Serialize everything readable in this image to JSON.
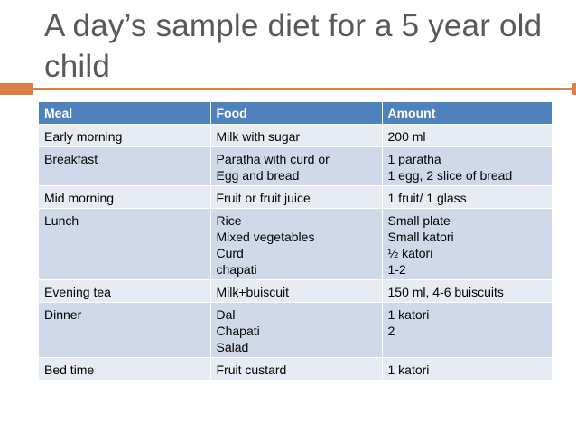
{
  "slide": {
    "title": "A day’s sample diet for a 5 year old child"
  },
  "table": {
    "headers": [
      "Meal",
      "Food",
      "Amount"
    ],
    "rows": [
      {
        "meal": "Early morning",
        "food": [
          "Milk with sugar"
        ],
        "amount": [
          "200 ml"
        ]
      },
      {
        "meal": "Breakfast",
        "food": [
          "Paratha with curd or",
          "Egg and bread"
        ],
        "amount": [
          "1 paratha",
          "1 egg, 2 slice of bread"
        ]
      },
      {
        "meal": "Mid morning",
        "food": [
          "Fruit or fruit juice"
        ],
        "amount": [
          "1 fruit/ 1 glass"
        ]
      },
      {
        "meal": "Lunch",
        "food": [
          "Rice",
          "Mixed vegetables",
          "Curd",
          "chapati"
        ],
        "amount": [
          "Small plate",
          "Small katori",
          "½ katori",
          "1-2"
        ]
      },
      {
        "meal": "Evening tea",
        "food": [
          "Milk+buiscuit"
        ],
        "amount": [
          "150 ml, 4-6 buiscuits"
        ]
      },
      {
        "meal": "Dinner",
        "food": [
          "Dal",
          "Chapati",
          "Salad"
        ],
        "amount": [
          "1 katori",
          "2"
        ]
      },
      {
        "meal": "Bed time",
        "food": [
          "Fruit custard"
        ],
        "amount": [
          "1 katori"
        ]
      }
    ]
  },
  "colors": {
    "title_text": "#595959",
    "accent_rule": "#dd8047",
    "header_fill": "#4f81bd",
    "row_fill_light": "#e6ebf4",
    "row_fill_dark": "#d0d9ea"
  }
}
